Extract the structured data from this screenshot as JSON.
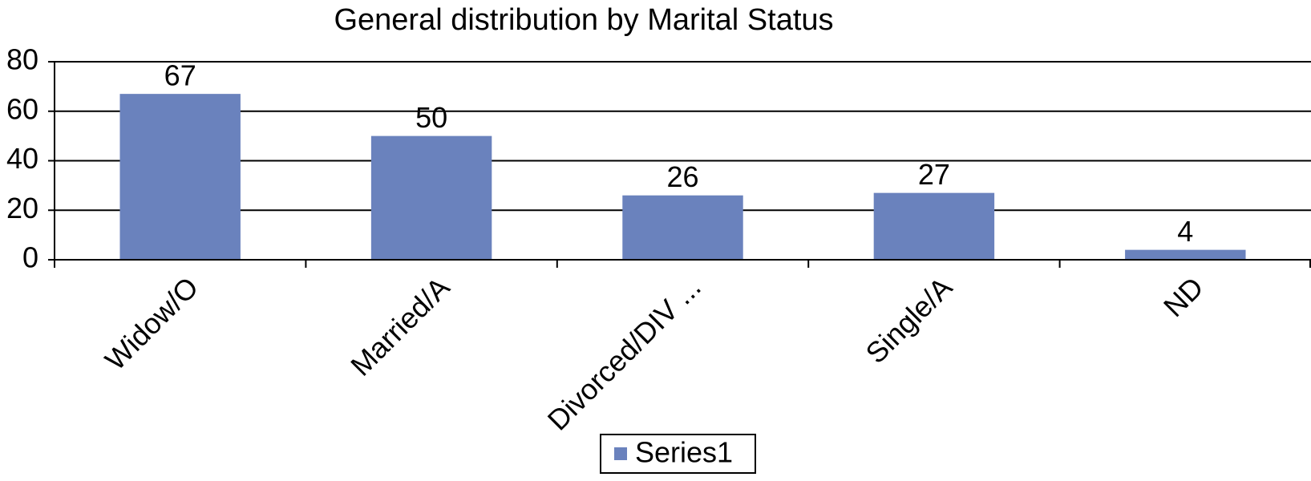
{
  "chart_data": {
    "type": "bar",
    "title": "General distribution by Marital Status",
    "categories": [
      "Widow/O",
      "Married/A",
      "Divorced/DIV ...",
      "Single/A",
      "ND"
    ],
    "series": [
      {
        "name": "Series1",
        "color": "#6a82bd",
        "values": [
          67,
          50,
          26,
          27,
          4
        ]
      }
    ],
    "ylim": [
      0,
      80
    ],
    "yticks": [
      0,
      20,
      40,
      60,
      80
    ],
    "grid": true,
    "legend": "bottom"
  }
}
